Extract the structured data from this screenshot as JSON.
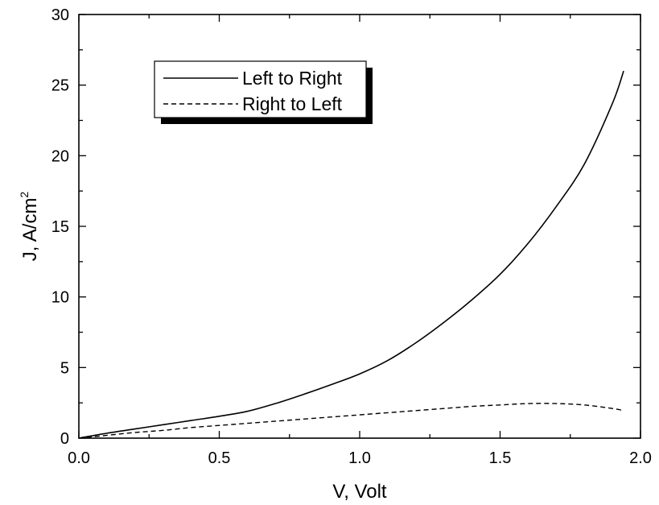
{
  "chart_data": {
    "type": "line",
    "xlabel": "V, Volt",
    "ylabel_main": "J, A/cm",
    "ylabel_sup": "2",
    "xlim": [
      0.0,
      2.0
    ],
    "ylim": [
      0,
      30
    ],
    "x_major_ticks": [
      0.0,
      0.5,
      1.0,
      1.5,
      2.0
    ],
    "x_tick_labels": [
      "0.0",
      "0.5",
      "1.0",
      "1.5",
      "2.0"
    ],
    "y_major_ticks": [
      0,
      5,
      10,
      15,
      20,
      25,
      30
    ],
    "y_tick_labels": [
      "0",
      "5",
      "10",
      "15",
      "20",
      "25",
      "30"
    ],
    "grid": false,
    "legend_position": "top-left",
    "series": [
      {
        "name": "Left to Right",
        "style": "solid",
        "color": "#000000",
        "x": [
          0.0,
          0.1,
          0.2,
          0.3,
          0.4,
          0.5,
          0.6,
          0.7,
          0.8,
          0.9,
          1.0,
          1.1,
          1.2,
          1.3,
          1.4,
          1.5,
          1.6,
          1.7,
          1.8,
          1.9,
          1.94
        ],
        "y": [
          0.0,
          0.35,
          0.65,
          0.95,
          1.25,
          1.55,
          1.9,
          2.45,
          3.1,
          3.8,
          4.55,
          5.5,
          6.75,
          8.2,
          9.8,
          11.6,
          13.8,
          16.4,
          19.4,
          23.7,
          26.0
        ]
      },
      {
        "name": "Right to Left",
        "style": "dashed",
        "color": "#000000",
        "x": [
          0.0,
          0.1,
          0.2,
          0.3,
          0.4,
          0.5,
          0.6,
          0.7,
          0.8,
          0.9,
          1.0,
          1.1,
          1.2,
          1.3,
          1.4,
          1.5,
          1.6,
          1.7,
          1.8,
          1.9,
          1.94
        ],
        "y": [
          0.0,
          0.2,
          0.4,
          0.55,
          0.75,
          0.9,
          1.05,
          1.2,
          1.35,
          1.5,
          1.65,
          1.8,
          1.95,
          2.1,
          2.25,
          2.35,
          2.45,
          2.45,
          2.35,
          2.1,
          1.95
        ]
      }
    ]
  }
}
